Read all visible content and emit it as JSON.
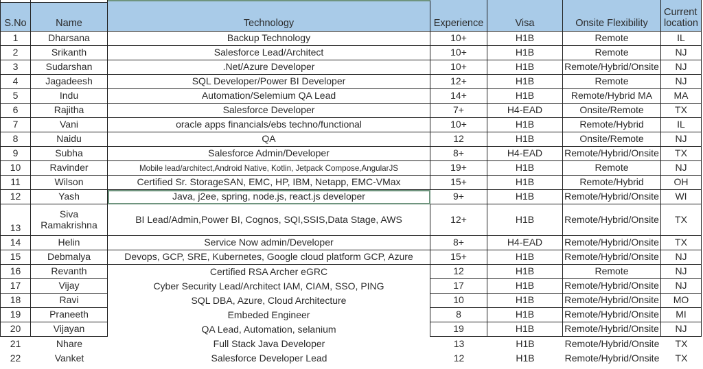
{
  "colors": {
    "header_bg": "#A9CBE8",
    "border": "#1f1f1f",
    "selection_green": "#6F947E",
    "text": "#2a2a2a"
  },
  "selection": {
    "row_sno": "12",
    "column": "technology"
  },
  "table": {
    "columns": [
      {
        "key": "sno",
        "label": "S.No"
      },
      {
        "key": "name",
        "label": "Name"
      },
      {
        "key": "technology",
        "label": "Technology"
      },
      {
        "key": "experience",
        "label": "Experience"
      },
      {
        "key": "visa",
        "label": "Visa"
      },
      {
        "key": "onsite",
        "label": "Onsite Flexibility"
      },
      {
        "key": "location",
        "label": "Current location"
      }
    ],
    "rows": [
      {
        "sno": "1",
        "name": "Dharsana",
        "technology": "Backup Technology",
        "experience": "10+",
        "visa": "H1B",
        "onsite": "Remote",
        "location": "IL"
      },
      {
        "sno": "2",
        "name": "Srikanth",
        "technology": "Salesforce Lead/Architect",
        "experience": "10+",
        "visa": "H1B",
        "onsite": "Remote",
        "location": "NJ"
      },
      {
        "sno": "3",
        "name": "Sudarshan",
        "technology": ".Net/Azure Developer",
        "experience": "10+",
        "visa": "H1B",
        "onsite": "Remote/Hybrid/Onsite",
        "location": "NJ"
      },
      {
        "sno": "4",
        "name": "Jagadeesh",
        "technology": "SQL Developer/Power BI Developer",
        "experience": "12+",
        "visa": "H1B",
        "onsite": "Remote",
        "location": "NJ"
      },
      {
        "sno": "5",
        "name": "Indu",
        "technology": "Automation/Selemium QA Lead",
        "experience": "14+",
        "visa": "H1B",
        "onsite": "Remote/Hybrid MA",
        "location": "MA"
      },
      {
        "sno": "6",
        "name": "Rajitha",
        "technology": "Salesforce Developer",
        "experience": "7+",
        "visa": "H4-EAD",
        "onsite": "Onsite/Remote",
        "location": "TX"
      },
      {
        "sno": "7",
        "name": "Vani",
        "technology": "oracle apps financials/ebs techno/functional",
        "experience": "10+",
        "visa": "H1B",
        "onsite": "Remote/Hybrid",
        "location": "IL"
      },
      {
        "sno": "8",
        "name": "Naidu",
        "technology": "QA",
        "experience": "12",
        "visa": "H1B",
        "onsite": "Onsite/Remote",
        "location": "NJ"
      },
      {
        "sno": "9",
        "name": "Subha",
        "technology": "Salesforce Admin/Developer",
        "experience": "8+",
        "visa": "H4-EAD",
        "onsite": "Remote/Hybrid/Onsite",
        "location": "TX"
      },
      {
        "sno": "10",
        "name": "Ravinder",
        "technology": "Mobile lead/architect,Android Native, Kotlin, Jetpack Compose,AngularJS",
        "experience": "19+",
        "visa": "H1B",
        "onsite": "Remote",
        "location": "NJ"
      },
      {
        "sno": "11",
        "name": "Wilson",
        "technology": "Certified Sr. StorageSAN, EMC, HP, IBM, Netapp, EMC-VMax",
        "experience": "15+",
        "visa": "H1B",
        "onsite": "Remote/Hybrid",
        "location": "OH"
      },
      {
        "sno": "12",
        "name": "Yash",
        "technology": "Java, j2ee, spring, node.js, react.js developer",
        "experience": "9+",
        "visa": "H1B",
        "onsite": "Remote/Hybrid/Onsite",
        "location": "WI"
      },
      {
        "sno": "13",
        "name": "Siva Ramakrishna",
        "technology": "BI Lead/Admin,Power BI, Cognos, SQI,SSIS,Data Stage, AWS",
        "experience": "12+",
        "visa": "H1B",
        "onsite": "Remote/Hybrid/Onsite",
        "location": "TX"
      },
      {
        "sno": "14",
        "name": "Helin",
        "technology": "Service Now admin/Developer",
        "experience": "8+",
        "visa": "H4-EAD",
        "onsite": "Remote/Hybrid/Onsite",
        "location": "TX"
      },
      {
        "sno": "15",
        "name": "Debmalya",
        "technology": "Devops, GCP, SRE, Kubernetes, Google cloud platform GCP, Azure",
        "experience": "15+",
        "visa": "H1B",
        "onsite": "Remote/Hybrid/Onsite",
        "location": "NJ"
      },
      {
        "sno": "16",
        "name": "Revanth",
        "technology": "Certified RSA Archer eGRC",
        "experience": "12",
        "visa": "H1B",
        "onsite": "Remote",
        "location": "NJ"
      },
      {
        "sno": "17",
        "name": "Vijay",
        "technology": "Cyber Security Lead/Architect IAM, CIAM, SSO, PING",
        "experience": "17",
        "visa": "H1B",
        "onsite": "Remote/Hybrid/Onsite",
        "location": "NJ"
      },
      {
        "sno": "18",
        "name": "Ravi",
        "technology": "SQL DBA, Azure, Cloud Architecture",
        "experience": "10",
        "visa": "H1B",
        "onsite": "Remote/Hybrid/Onsite",
        "location": "MO"
      },
      {
        "sno": "19",
        "name": "Praneeth",
        "technology": "Embeded Engineer",
        "experience": "8",
        "visa": "H1B",
        "onsite": "Remote/Hybrid/Onsite",
        "location": "MI"
      },
      {
        "sno": "20",
        "name": "Vijayan",
        "technology": "QA Lead, Automation, selanium",
        "experience": "19",
        "visa": "H1B",
        "onsite": "Remote/Hybrid/Onsite",
        "location": "NJ"
      },
      {
        "sno": "21",
        "name": "Nhare",
        "technology": "Full Stack Java Developer",
        "experience": "13",
        "visa": "H1B",
        "onsite": "Remote/Hybrid/Onsite",
        "location": "TX"
      },
      {
        "sno": "22",
        "name": "Vanket",
        "technology": "Salesforce Developer Lead",
        "experience": "12",
        "visa": "H1B",
        "onsite": "Remote/Hybrid/Onsite",
        "location": "TX"
      }
    ]
  }
}
